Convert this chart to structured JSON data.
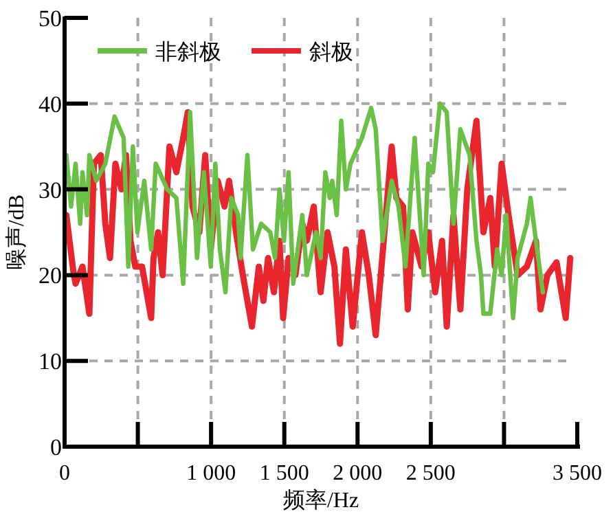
{
  "chart_data": {
    "type": "line",
    "xlabel": "频率/Hz",
    "ylabel": "噪声/dB",
    "xlim": [
      0,
      3500
    ],
    "ylim": [
      0,
      50
    ],
    "xticks": [
      0,
      {
        "value": 500,
        "label": null
      },
      {
        "value": 1000,
        "label": "1 000"
      },
      {
        "value": 1500,
        "label": "1 500"
      },
      {
        "value": 2000,
        "label": "2 000"
      },
      {
        "value": 2500,
        "label": "2 500"
      },
      {
        "value": 3000,
        "label": null
      },
      {
        "value": 3500,
        "label": "3 500"
      }
    ],
    "yticks": [
      0,
      10,
      20,
      30,
      40,
      50
    ],
    "grid": true,
    "legend": "top left",
    "line_style": "solid",
    "marker": "none",
    "series": [
      {
        "name": "非斜极",
        "color": "#6abf45",
        "x": [
          12,
          44,
          75,
          106,
          122,
          153,
          169,
          216,
          278,
          341,
          403,
          435,
          466,
          497,
          544,
          591,
          622,
          701,
          763,
          810,
          857,
          904,
          951,
          998,
          1029,
          1060,
          1098,
          1138,
          1185,
          1201,
          1248,
          1286,
          1342,
          1404,
          1436,
          1467,
          1498,
          1529,
          1561,
          1623,
          1654,
          1717,
          1748,
          1780,
          1811,
          1827,
          1858,
          1889,
          1920,
          1952,
          2030,
          2093,
          2124,
          2171,
          2233,
          2280,
          2327,
          2390,
          2421,
          2452,
          2483,
          2515,
          2562,
          2609,
          2655,
          2702,
          2765,
          2812,
          2843,
          2859,
          2906,
          2953,
          2984,
          3015,
          3062,
          3093,
          3156,
          3181,
          3218,
          3265
        ],
        "values": [
          34,
          28,
          33,
          26,
          32,
          27,
          34,
          31,
          33,
          38.5,
          36,
          21,
          35,
          25,
          31,
          23,
          33,
          30,
          29,
          19,
          39,
          22,
          32,
          21,
          33,
          23,
          18,
          29,
          27,
          22,
          34,
          23,
          26,
          25,
          22,
          30,
          24,
          32,
          19,
          27,
          20,
          25,
          22,
          32,
          29,
          31,
          27,
          38,
          30,
          33,
          36,
          39.5,
          37,
          24,
          31,
          28,
          21,
          36,
          28,
          20,
          33,
          32,
          40,
          39,
          26,
          37,
          34,
          24,
          20,
          15.5,
          15.5,
          23,
          20,
          27,
          15,
          22,
          26,
          29,
          24,
          18
        ]
      },
      {
        "name": "斜极",
        "color": "#e8262d",
        "x": [
          12,
          59,
          75,
          122,
          169,
          200,
          247,
          278,
          310,
          347,
          388,
          419,
          450,
          482,
          529,
          591,
          607,
          638,
          669,
          716,
          763,
          810,
          841,
          873,
          920,
          960,
          998,
          1045,
          1092,
          1123,
          1170,
          1217,
          1279,
          1326,
          1357,
          1389,
          1429,
          1467,
          1492,
          1529,
          1576,
          1623,
          1654,
          1701,
          1748,
          1795,
          1842,
          1880,
          1920,
          1967,
          2030,
          2077,
          2124,
          2233,
          2265,
          2311,
          2343,
          2374,
          2437,
          2483,
          2530,
          2577,
          2609,
          2655,
          2702,
          2749,
          2812,
          2859,
          2906,
          2937,
          2984,
          3031,
          3093,
          3156,
          3218,
          3249,
          3296,
          3359,
          3421,
          3452
        ],
        "values": [
          27,
          20.5,
          19,
          21,
          15.5,
          33,
          34,
          26,
          22,
          33,
          30,
          34,
          24,
          21,
          21,
          15,
          22,
          25,
          20,
          35,
          32,
          36,
          39,
          28,
          25,
          34,
          23,
          31,
          28,
          31,
          25,
          20,
          14,
          21,
          17,
          22,
          18,
          24,
          15,
          22,
          20,
          26,
          24,
          28,
          18,
          25,
          21,
          12,
          23,
          14,
          25,
          20,
          13,
          35,
          29,
          28,
          16,
          25,
          21,
          25,
          18,
          24,
          14,
          27,
          16,
          30,
          38,
          25,
          29,
          21,
          33,
          27,
          20,
          21,
          24,
          16,
          20,
          21.5,
          15,
          22
        ]
      }
    ]
  }
}
